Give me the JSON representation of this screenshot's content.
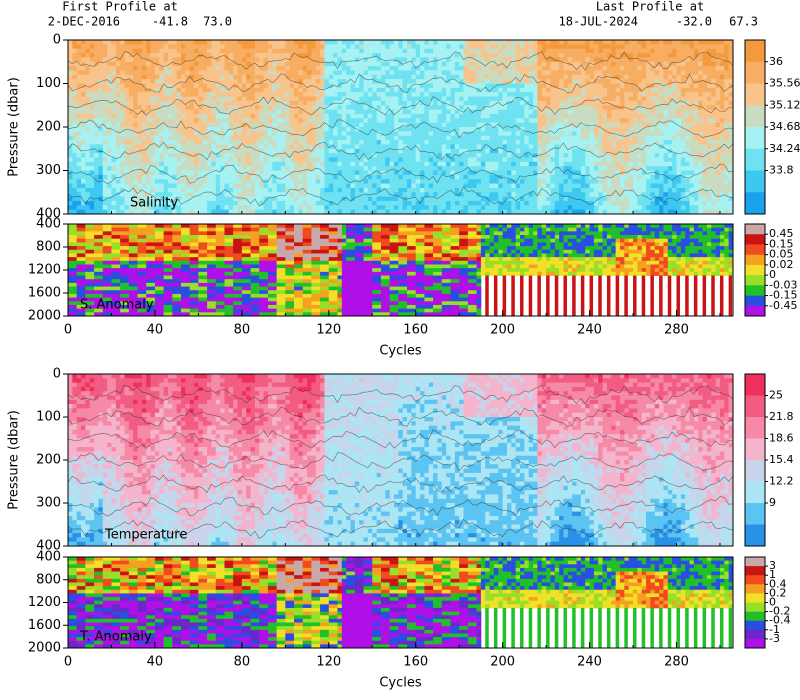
{
  "header": {
    "first_title": "First Profile at",
    "first_date": "2-DEC-2016",
    "first_lat": "-41.8",
    "first_lon": "73.0",
    "last_title": "Last Profile at",
    "last_date": "18-JUL-2024",
    "last_lat": "-32.0",
    "last_lon": "67.3"
  },
  "chart_data": [
    {
      "type": "heatmap",
      "label": "Salinity",
      "ylabel": "Pressure (dbar)",
      "xlim": [
        0,
        306
      ],
      "ylim": [
        0,
        400
      ],
      "yticks": [
        0,
        100,
        200,
        300,
        400
      ],
      "colorbar_ticks": [
        36,
        35.56,
        35.12,
        34.68,
        34.24,
        33.8
      ],
      "colors": [
        "#f59a3c",
        "#f7ae62",
        "#f9c48c",
        "#c9dcc2",
        "#a6f2f2",
        "#6fe2f2",
        "#3cc8f0",
        "#1aa2ec"
      ]
    },
    {
      "type": "anomaly",
      "label": "S. Anomaly",
      "xlabel": "Cycles",
      "xlim": [
        0,
        306
      ],
      "ylim": [
        400,
        2000
      ],
      "yticks": [
        400,
        800,
        1200,
        1600,
        2000
      ],
      "xticks": [
        0,
        40,
        80,
        120,
        160,
        200,
        240,
        280
      ],
      "colorbar_ticks": [
        0.45,
        0.15,
        0.05,
        0.02,
        0,
        -0.03,
        -0.15,
        -0.45
      ],
      "colors": [
        "#c8a8a8",
        "#c81414",
        "#f04a1e",
        "#f5a020",
        "#f2e028",
        "#98e028",
        "#22c028",
        "#2a4ee0",
        "#b010e8"
      ]
    },
    {
      "type": "heatmap",
      "label": "Temperature",
      "ylabel": "Pressure (dbar)",
      "xlim": [
        0,
        306
      ],
      "ylim": [
        0,
        400
      ],
      "yticks": [
        0,
        100,
        200,
        300,
        400
      ],
      "colorbar_ticks": [
        25,
        21.8,
        18.6,
        15.4,
        12.2,
        9
      ],
      "colors": [
        "#f0305c",
        "#f35c82",
        "#f68aa6",
        "#f4b4cc",
        "#c8d4ea",
        "#ace6f4",
        "#5cc4f2",
        "#2a92e6"
      ]
    },
    {
      "type": "anomaly",
      "label": "T. Anomaly",
      "xlabel": "Cycles",
      "xlim": [
        0,
        306
      ],
      "ylim": [
        400,
        2000
      ],
      "yticks": [
        400,
        800,
        1200,
        1600,
        2000
      ],
      "xticks": [
        0,
        40,
        80,
        120,
        160,
        200,
        240,
        280
      ],
      "colorbar_ticks": [
        3,
        1,
        0.4,
        0.2,
        0,
        -0.2,
        -0.4,
        -1,
        -3
      ],
      "colors": [
        "#c8a8a8",
        "#c81414",
        "#f04a1e",
        "#f5a020",
        "#f2e028",
        "#98e028",
        "#22c028",
        "#2a4ee0",
        "#6a28c8",
        "#b010e8"
      ]
    }
  ]
}
